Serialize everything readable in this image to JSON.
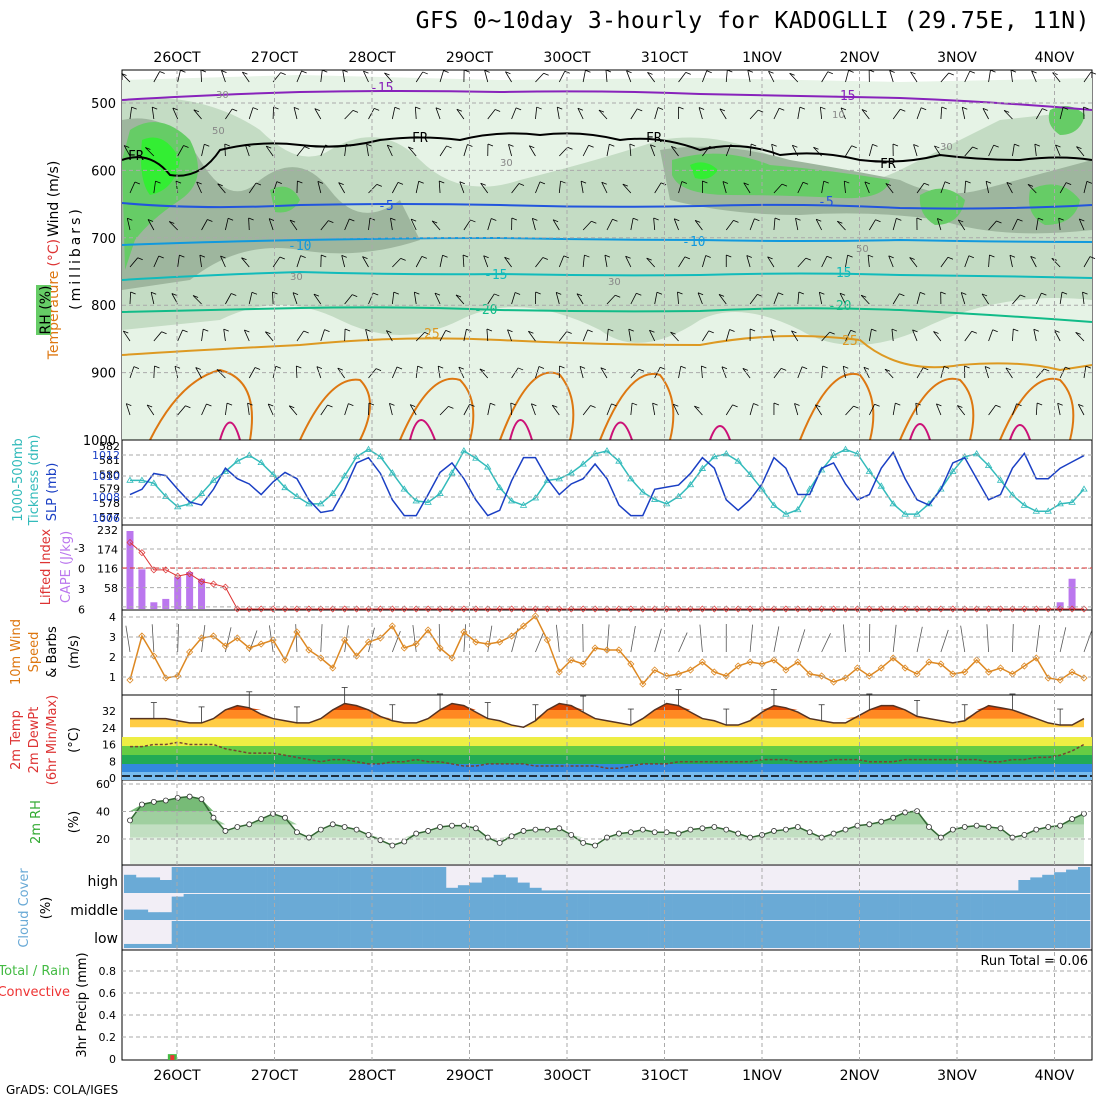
{
  "title": "GFS 0~10day 3-hourly for KADOGLLI (29.75E, 11N)",
  "footer": "GrADS: COLA/IGES",
  "colors": {
    "grid": "#aaaaaa",
    "rh_light": "#e6f3e6",
    "rh_mid": "#c4dcc4",
    "rh_dark": "#9eb69e",
    "rh_green": "#66cc66",
    "rh_bright": "#33ee33",
    "temp_m15": "#8822bb",
    "temp_fr": "#000000",
    "temp_m5": "#2255dd",
    "temp_10": "#1199dd",
    "temp_15": "#11bbbb",
    "temp_20": "#11bb88",
    "temp_25": "#dd9922",
    "temp_30": "#dd7711",
    "temp_35": "#cc1177",
    "slp": "#1a3fc4",
    "thickness": "#33bbbb",
    "cape": "#bb77ee",
    "li": "#dd3333",
    "wind10": "#dd8822",
    "cloud": "#6aaad6",
    "cloud_bg": "#f2eef6",
    "rh2m": "#33aa33",
    "precip_total": "#44bb44",
    "precip_conv": "#ee3333"
  },
  "axis": {
    "date_labels": [
      "26OCT",
      "27OCT",
      "28OCT",
      "29OCT",
      "30OCT",
      "31OCT",
      "1NOV",
      "2NOV",
      "3NOV",
      "4NOV"
    ]
  },
  "panels": {
    "upper": {
      "ylabel_rh": "RH (%)",
      "ylabel_temp": "Temperature",
      "ylabel_temp_unit": "(°C)",
      "ylabel_wind": "Wind (m/s)",
      "ylabel_mb": "(millibars)",
      "yticks": [
        "500",
        "600",
        "700",
        "800",
        "900",
        "1000"
      ],
      "contour_labels": {
        "m15a": "-15",
        "m15b": "-15",
        "fr1": "FR",
        "fr2": "FR",
        "fr3": "FR",
        "fr4": "FR",
        "m5a": "-5",
        "m5b": "-5",
        "t10a": "-10",
        "t10b": "-10",
        "t15a": "-15",
        "t15b": "-15",
        "t20a": "-20",
        "t20b": "-20",
        "t25a": "25",
        "t25b": "25",
        "rh30a": "30",
        "rh30b": "30",
        "rh30c": "30",
        "rh30d": "30",
        "rh30e": "30",
        "rh50a": "50",
        "rh50b": "50",
        "rh10": "10"
      }
    },
    "slp": {
      "ylabel_left": "1000-500mb",
      "ylabel_left2": "Tickness (dm)",
      "ylabel_right": "SLP (mb)",
      "yticks_left": [
        "582",
        "581",
        "580",
        "579",
        "578",
        "577"
      ],
      "yticks_right": [
        "1012",
        "1010",
        "1008",
        "1006"
      ]
    },
    "cape": {
      "ylabel_left": "Lifted Index",
      "ylabel_right": "CAPE (J/kg)",
      "yticks_left": [
        "-3",
        "0",
        "3",
        "6"
      ],
      "yticks_right": [
        "232",
        "174",
        "116",
        "58"
      ]
    },
    "wind10": {
      "ylabel_1": "10m Wind",
      "ylabel_2": "Speed",
      "ylabel_3": "& Barbs",
      "ylabel_unit": "(m/s)",
      "yticks": [
        "4",
        "3",
        "2",
        "1"
      ]
    },
    "temp2m": {
      "ylabel_1": "2m Temp",
      "ylabel_2": "2m DewPt",
      "ylabel_3": "(6hr Min/Max)",
      "ylabel_unit": "(°C)",
      "yticks": [
        "32",
        "24",
        "16",
        "8",
        "0"
      ]
    },
    "rh2m": {
      "ylabel": "2m RH",
      "ylabel_unit": "(%)",
      "yticks": [
        "60",
        "40",
        "20"
      ]
    },
    "cloud": {
      "ylabel": "Cloud Cover",
      "ylabel_unit": "(%)",
      "levels": [
        "high",
        "middle",
        "low"
      ]
    },
    "precip": {
      "ylabel_1": "Total / Rain",
      "ylabel_2": "Convective",
      "ylabel_3": "3hr Precip (mm)",
      "yticks": [
        "0.8",
        "0.6",
        "0.4",
        "0.2",
        "0"
      ],
      "run_total": "Run Total = 0.06"
    }
  },
  "chart_data": [
    {
      "type": "line",
      "title": "1000-500mb Thickness (dm) and SLP (mb)",
      "n_steps": 81,
      "step_hours": 3,
      "series": [
        {
          "name": "SLP (mb)",
          "axis": "right",
          "ylim": [
            1005.8,
            1013.2
          ],
          "values": [
            1008.5,
            1009.0,
            1010.5,
            1010.3,
            1009.0,
            1007.8,
            1007.5,
            1009.0,
            1011.0,
            1010.0,
            1009.5,
            1008.5,
            1009.7,
            1010.6,
            1010.0,
            1008.0,
            1006.8,
            1007.0,
            1009.0,
            1011.5,
            1012.0,
            1010.5,
            1008.0,
            1006.5,
            1006.5,
            1008.5,
            1010.6,
            1011.5,
            1010.0,
            1008.0,
            1006.5,
            1007.0,
            1009.8,
            1012.0,
            1012.0,
            1010.0,
            1008.5,
            1009.5,
            1010.0,
            1011.4,
            1010.0,
            1007.5,
            1006.5,
            1006.5,
            1009.0,
            1009.2,
            1009.4,
            1010.5,
            1012.0,
            1011.0,
            1008.0,
            1007.0,
            1008.0,
            1009.5,
            1012.0,
            1011.0,
            1008.5,
            1008.5,
            1011.0,
            1011.5,
            1009.5,
            1008.0,
            1008.5,
            1011.0,
            1012.5,
            1010.0,
            1008.0,
            1007.5,
            1009.0,
            1011.5,
            1012.0,
            1010.0,
            1008.0,
            1008.5,
            1011.0,
            1012.4,
            1010.0,
            1010.0,
            1011.0,
            1011.6,
            1012.2
          ]
        },
        {
          "name": "Thickness (dm)",
          "axis": "left",
          "ylim": [
            577,
            582.3
          ],
          "values": [
            579.9,
            579.9,
            579.7,
            578.8,
            578.1,
            578.3,
            579.0,
            579.9,
            580.5,
            581.2,
            581.6,
            581.1,
            580.3,
            579.4,
            578.8,
            578.3,
            578.3,
            579.0,
            580.2,
            581.5,
            582.0,
            581.5,
            580.4,
            579.3,
            578.5,
            578.4,
            579.0,
            580.4,
            581.9,
            581.4,
            580.8,
            579.4,
            578.5,
            578.2,
            578.7,
            579.9,
            580.0,
            580.4,
            581.0,
            581.7,
            581.9,
            581.2,
            580.0,
            579.1,
            578.6,
            578.3,
            578.8,
            579.6,
            580.7,
            581.5,
            581.7,
            581.2,
            580.3,
            579.3,
            578.2,
            577.6,
            577.9,
            579.3,
            580.6,
            581.6,
            582.0,
            581.7,
            580.5,
            579.5,
            578.3,
            577.6,
            577.6,
            578.3,
            579.3,
            580.5,
            581.5,
            581.7,
            580.9,
            579.9,
            578.9,
            578.2,
            577.8,
            577.8,
            578.3,
            578.4,
            579.3
          ]
        }
      ]
    },
    {
      "type": "bar",
      "title": "CAPE (J/kg) and Lifted Index",
      "cape_ylim": [
        0,
        232
      ],
      "cape_values": [
        232,
        118,
        20,
        30,
        95,
        110,
        90,
        0,
        0,
        0,
        0,
        0,
        0,
        0,
        0,
        0,
        0,
        0,
        0,
        0,
        0,
        0,
        0,
        0,
        0,
        0,
        0,
        0,
        0,
        0,
        0,
        0,
        0,
        0,
        0,
        0,
        0,
        0,
        0,
        0,
        0,
        0,
        0,
        0,
        0,
        0,
        0,
        0,
        0,
        0,
        0,
        0,
        0,
        0,
        0,
        0,
        0,
        0,
        0,
        0,
        0,
        0,
        0,
        0,
        0,
        0,
        0,
        0,
        0,
        0,
        0,
        0,
        0,
        0,
        0,
        0,
        0,
        0,
        20,
        90,
        0
      ],
      "li_ylim": [
        -4.6,
        6
      ],
      "li_values": [
        -2.5,
        -1.2,
        1.0,
        1.0,
        1.8,
        1.5,
        2.5,
        2.8,
        3.2,
        6,
        6,
        6,
        6,
        6,
        6,
        6,
        6,
        6,
        6,
        6,
        6,
        6,
        6,
        6,
        6,
        6,
        6,
        6,
        6,
        6,
        6,
        6,
        6,
        6,
        6,
        6,
        6,
        6,
        6,
        6,
        6,
        6,
        6,
        6,
        6,
        6,
        6,
        6,
        6,
        6,
        6,
        6,
        6,
        6,
        6,
        6,
        6,
        6,
        6,
        6,
        6,
        6,
        6,
        6,
        6,
        6,
        6,
        6,
        6,
        6,
        6,
        6,
        6,
        6,
        6,
        6,
        6,
        6,
        6,
        6,
        6
      ]
    },
    {
      "type": "line",
      "title": "10m Wind Speed (m/s)",
      "ylim": [
        0.2,
        4.2
      ],
      "values": [
        0.8,
        3.0,
        2.0,
        0.9,
        1.0,
        2.2,
        2.9,
        3.0,
        2.5,
        2.9,
        2.4,
        2.6,
        2.8,
        1.8,
        3.2,
        2.3,
        1.9,
        1.4,
        2.8,
        2.0,
        2.7,
        2.9,
        3.5,
        2.4,
        2.6,
        3.3,
        2.4,
        1.9,
        3.2,
        2.7,
        2.6,
        2.7,
        3.0,
        3.5,
        4.0,
        2.8,
        1.2,
        1.8,
        1.6,
        2.4,
        2.3,
        2.3,
        1.6,
        0.6,
        1.3,
        1.0,
        1.1,
        1.3,
        1.7,
        1.2,
        1.0,
        1.5,
        1.7,
        1.6,
        1.8,
        1.3,
        1.7,
        1.1,
        1.0,
        0.7,
        0.9,
        1.4,
        1.0,
        1.4,
        1.9,
        1.4,
        1.1,
        1.7,
        1.6,
        1.1,
        1.2,
        1.8,
        1.2,
        1.4,
        1.1,
        1.5,
        1.9,
        0.9,
        0.8,
        1.2,
        0.9
      ]
    },
    {
      "type": "area",
      "title": "2m Temp and 2m DewPt (°C)",
      "ylim": [
        0,
        38
      ],
      "temp_values": [
        28,
        28,
        28,
        28,
        27,
        26,
        26,
        28,
        32,
        34,
        33,
        30,
        28,
        27,
        26,
        26,
        28,
        32,
        35,
        34,
        32,
        29,
        27,
        26,
        26,
        28,
        32,
        35,
        34,
        31,
        28,
        27,
        25,
        24,
        27,
        32,
        35,
        34,
        31,
        28,
        27,
        26,
        25,
        28,
        32,
        35,
        34,
        31,
        28,
        27,
        25,
        25,
        27,
        31,
        34,
        33,
        31,
        28,
        27,
        26,
        26,
        29,
        32,
        34,
        34,
        32,
        29,
        28,
        27,
        26,
        27,
        31,
        34,
        33,
        32,
        30,
        28,
        26,
        25,
        25,
        28
      ],
      "dew_values": [
        15,
        15,
        16,
        16,
        17,
        16,
        16,
        16,
        14,
        13,
        12,
        12,
        12,
        11,
        10,
        9,
        8,
        9,
        9,
        8,
        7,
        7,
        8,
        8,
        9,
        8,
        8,
        7,
        6,
        6,
        7,
        7,
        7,
        7,
        6,
        6,
        6,
        6,
        6,
        6,
        5,
        5,
        6,
        7,
        7,
        7,
        8,
        8,
        8,
        8,
        8,
        8,
        8,
        9,
        9,
        9,
        8,
        8,
        8,
        9,
        9,
        9,
        8,
        8,
        8,
        9,
        9,
        9,
        9,
        9,
        9,
        9,
        8,
        8,
        9,
        9,
        10,
        10,
        11,
        13,
        16
      ]
    },
    {
      "type": "area",
      "title": "2m RH (%)",
      "ylim": [
        0,
        62
      ],
      "values": [
        33,
        45,
        47,
        48,
        50,
        51,
        49,
        35,
        25,
        28,
        30,
        34,
        38,
        35,
        24,
        20,
        26,
        30,
        28,
        26,
        22,
        18,
        14,
        17,
        23,
        25,
        28,
        29,
        29,
        27,
        20,
        16,
        21,
        25,
        26,
        26,
        27,
        22,
        16,
        14,
        20,
        23,
        24,
        26,
        24,
        24,
        23,
        26,
        27,
        28,
        26,
        23,
        20,
        22,
        25,
        26,
        28,
        24,
        20,
        23,
        26,
        29,
        30,
        32,
        35,
        39,
        40,
        28,
        20,
        26,
        28,
        29,
        28,
        27,
        20,
        22,
        26,
        28,
        29,
        34,
        38
      ]
    },
    {
      "type": "bar",
      "title": "Cloud Cover (%) high / middle / low",
      "high_values": [
        70,
        60,
        60,
        50,
        100,
        100,
        100,
        100,
        100,
        100,
        100,
        100,
        100,
        100,
        100,
        100,
        100,
        100,
        100,
        100,
        100,
        100,
        100,
        100,
        100,
        100,
        100,
        20,
        30,
        40,
        60,
        70,
        60,
        40,
        20,
        10,
        10,
        10,
        10,
        10,
        10,
        10,
        10,
        10,
        10,
        10,
        10,
        10,
        10,
        10,
        10,
        10,
        10,
        10,
        10,
        10,
        10,
        10,
        10,
        10,
        10,
        10,
        10,
        10,
        10,
        10,
        10,
        10,
        10,
        10,
        10,
        10,
        10,
        10,
        10,
        50,
        60,
        70,
        80,
        90,
        100
      ],
      "middle_values": [
        40,
        40,
        30,
        30,
        90,
        100,
        100,
        100,
        100,
        100,
        100,
        100,
        100,
        100,
        100,
        100,
        100,
        100,
        100,
        100,
        100,
        100,
        100,
        100,
        100,
        100,
        100,
        100,
        100,
        100,
        100,
        100,
        100,
        100,
        100,
        100,
        100,
        100,
        100,
        100,
        100,
        100,
        100,
        100,
        100,
        100,
        100,
        100,
        100,
        100,
        100,
        100,
        100,
        100,
        100,
        100,
        100,
        100,
        100,
        100,
        100,
        100,
        100,
        100,
        100,
        100,
        100,
        100,
        100,
        100,
        100,
        100,
        100,
        100,
        100,
        100,
        100,
        100,
        100,
        100,
        100
      ],
      "low_values": [
        15,
        15,
        15,
        15,
        100,
        100,
        100,
        100,
        100,
        100,
        100,
        100,
        100,
        100,
        100,
        100,
        100,
        100,
        100,
        100,
        100,
        100,
        100,
        100,
        100,
        100,
        100,
        100,
        100,
        100,
        100,
        100,
        100,
        100,
        100,
        100,
        100,
        100,
        100,
        100,
        100,
        100,
        100,
        100,
        100,
        100,
        100,
        100,
        100,
        100,
        100,
        100,
        100,
        100,
        100,
        100,
        100,
        100,
        100,
        100,
        100,
        100,
        100,
        100,
        100,
        100,
        100,
        100,
        100,
        100,
        100,
        100,
        100,
        100,
        100,
        100,
        100,
        100,
        100,
        100,
        100
      ]
    },
    {
      "type": "bar",
      "title": "3hr Precip (mm) Total / Rain / Convective",
      "ylim": [
        0,
        1
      ],
      "bars": [
        {
          "step": 2,
          "total": 0.06,
          "convective": 0.06
        }
      ]
    }
  ]
}
